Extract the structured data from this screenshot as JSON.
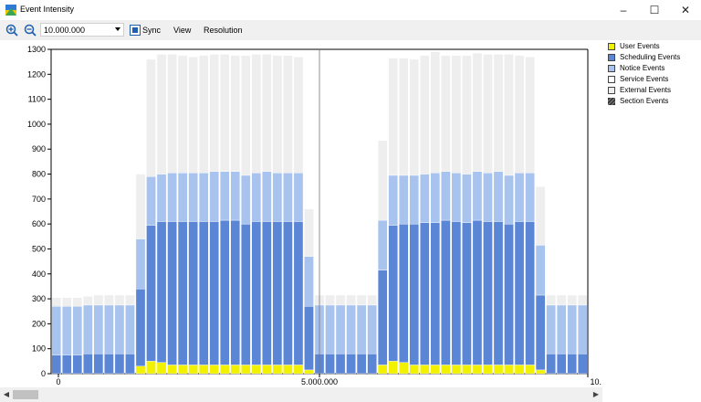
{
  "window": {
    "title": "Event Intensity"
  },
  "toolbar": {
    "zoom_value": "10.000.000",
    "sync_label": "Sync",
    "view_label": "View",
    "resolution_label": "Resolution"
  },
  "legend": [
    {
      "label": "User Events",
      "color": "#f2f200"
    },
    {
      "label": "Scheduling Events",
      "color": "#5b86d6"
    },
    {
      "label": "Notice Events",
      "color": "#a7c3ee"
    },
    {
      "label": "Service Events",
      "color": "#ffffff"
    },
    {
      "label": "External Events",
      "color": "#eeeeee"
    },
    {
      "label": "Section Events",
      "color": "#333333"
    }
  ],
  "chart_data": {
    "type": "bar",
    "stacked": true,
    "ylim": [
      0,
      1300
    ],
    "yticks": [
      0,
      100,
      200,
      300,
      400,
      500,
      600,
      700,
      800,
      900,
      1000,
      1100,
      1200,
      1300
    ],
    "xtick_labels": [
      "0",
      "5.000.000",
      "10."
    ],
    "grid": "vertical line at 5.000.000",
    "series": [
      {
        "name": "User Events",
        "color": "#f2f200",
        "values": [
          0,
          0,
          0,
          0,
          0,
          0,
          0,
          0,
          30,
          50,
          45,
          35,
          35,
          35,
          35,
          35,
          35,
          35,
          35,
          35,
          35,
          35,
          35,
          35,
          15,
          0,
          0,
          0,
          0,
          0,
          0,
          35,
          50,
          45,
          35,
          35,
          35,
          35,
          35,
          35,
          35,
          35,
          35,
          35,
          35,
          35,
          15,
          0,
          0,
          0,
          0
        ]
      },
      {
        "name": "Scheduling Events",
        "color": "#5b86d6",
        "values": [
          75,
          75,
          75,
          80,
          80,
          80,
          80,
          80,
          310,
          545,
          565,
          575,
          575,
          575,
          575,
          575,
          580,
          580,
          565,
          575,
          575,
          575,
          575,
          575,
          255,
          80,
          80,
          80,
          80,
          80,
          80,
          380,
          545,
          555,
          565,
          570,
          570,
          580,
          575,
          570,
          580,
          575,
          575,
          565,
          575,
          575,
          300,
          80,
          80,
          80,
          80
        ]
      },
      {
        "name": "Notice Events",
        "color": "#a7c3ee",
        "values": [
          195,
          195,
          195,
          195,
          195,
          195,
          195,
          195,
          200,
          195,
          190,
          195,
          195,
          195,
          195,
          200,
          195,
          195,
          195,
          195,
          200,
          195,
          195,
          195,
          200,
          195,
          195,
          195,
          195,
          195,
          195,
          200,
          200,
          195,
          195,
          195,
          200,
          195,
          195,
          195,
          195,
          195,
          200,
          195,
          195,
          195,
          200,
          195,
          195,
          195,
          195
        ]
      },
      {
        "name": "External Events",
        "color": "#eeeeee",
        "values": [
          35,
          35,
          35,
          35,
          40,
          40,
          40,
          40,
          260,
          470,
          480,
          475,
          470,
          465,
          470,
          470,
          470,
          465,
          480,
          475,
          470,
          470,
          470,
          465,
          190,
          40,
          40,
          40,
          40,
          40,
          40,
          320,
          470,
          470,
          465,
          475,
          485,
          465,
          470,
          475,
          475,
          475,
          470,
          485,
          470,
          465,
          235,
          40,
          40,
          40,
          40
        ]
      }
    ]
  }
}
